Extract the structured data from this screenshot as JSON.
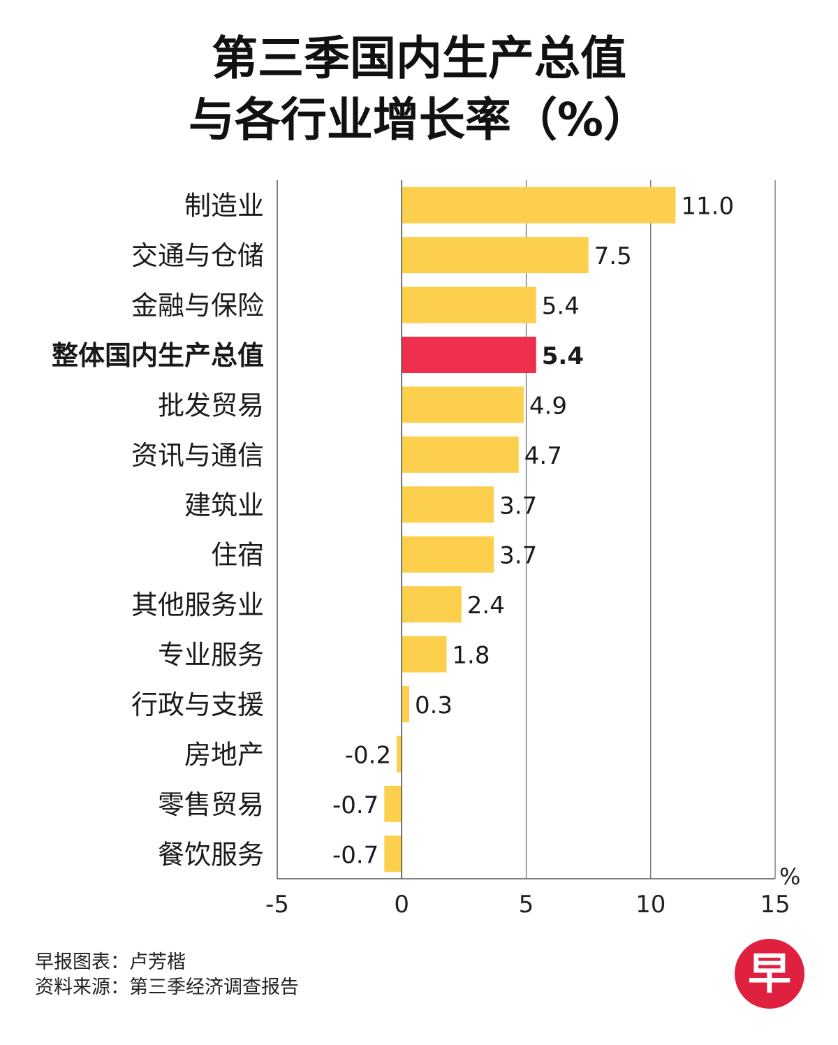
{
  "header": {
    "title_line1": "第三季国内生产总值",
    "title_line2": "与各行业增长率（%）"
  },
  "footer": {
    "credit": "早报图表：卢芳楷",
    "source": "资料来源：第三季经济调查报告"
  },
  "logo": {
    "text": "早",
    "color": "#e0203f"
  },
  "chart_data": {
    "type": "bar",
    "orientation": "horizontal",
    "categories": [
      "制造业",
      "交通与仓储",
      "金融与保险",
      "整体国内生产总值",
      "批发贸易",
      "资讯与通信",
      "建筑业",
      "住宿",
      "其他服务业",
      "专业服务",
      "行政与支援",
      "房地产",
      "零售贸易",
      "餐饮服务"
    ],
    "values": [
      11.0,
      7.5,
      5.4,
      5.4,
      4.9,
      4.7,
      3.7,
      3.7,
      2.4,
      1.8,
      0.3,
      -0.2,
      -0.7,
      -0.7
    ],
    "value_labels": [
      "11.0",
      "7.5",
      "5.4",
      "5.4",
      "4.9",
      "4.7",
      "3.7",
      "3.7",
      "2.4",
      "1.8",
      "0.3",
      "-0.2",
      "-0.7",
      "-0.7"
    ],
    "highlight_category": "整体国内生产总值",
    "xlim": [
      -5,
      15
    ],
    "x_ticks": [
      -5,
      0,
      5,
      10,
      15
    ],
    "x_tick_labels": [
      "-5",
      "0",
      "5",
      "10",
      "15"
    ],
    "x_unit_label": "%",
    "grid": true,
    "colors": {
      "bar": "#fccf4d",
      "highlight": "#ee2f4d",
      "axis": "#555555",
      "grid": "#666666"
    }
  }
}
